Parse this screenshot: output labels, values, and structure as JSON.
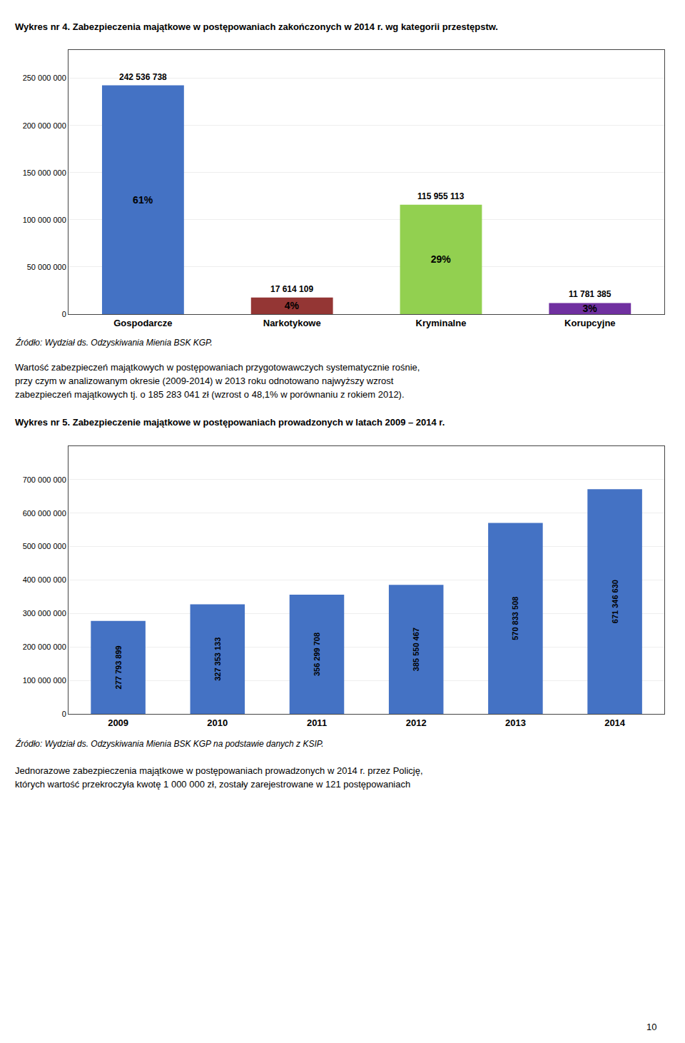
{
  "chart_data": [
    {
      "type": "bar",
      "title": "Wykres nr 4. Zabezpieczenia majątkowe w postępowaniach zakończonych w 2014 r. wg kategorii przestępstw.",
      "categories": [
        "Gospodarcze",
        "Narkotykowe",
        "Kryminalne",
        "Korupcyjne"
      ],
      "values": [
        242536738,
        17614109,
        115955113,
        11781385
      ],
      "value_labels": [
        "242 536 738",
        "17 614 109",
        "115 955 113",
        "11 781 385"
      ],
      "share_labels": [
        "61%",
        "4%",
        "29%",
        "3%"
      ],
      "colors": [
        "#4472C4",
        "#943634",
        "#92D050",
        "#7030A0"
      ],
      "ylim": [
        0,
        280000000
      ],
      "yticks": [
        0,
        {
          "value": 50000000,
          "label": "50 000 000"
        },
        {
          "value": 100000000,
          "label": "100 000 000"
        },
        {
          "value": 150000000,
          "label": "150 000 000"
        },
        {
          "value": 200000000,
          "label": "200 000 000"
        },
        {
          "value": 250000000,
          "label": "250 000 000"
        }
      ],
      "grid": true,
      "data_labels": true,
      "annotations": [
        "Źródło: Wydział ds. Odzyskiwania Mienia BSK KGP.",
        "Wartość zabezpieczeń majątkowych w postępowaniach przygotowawczych systematycznie rośnie,",
        "przy czym w analizowanym okresie (2009-2014) w 2013 roku odnotowano najwyższy wzrost",
        "zabezpieczeń majątkowych tj. o 185 283 041 zł (wzrost o 48,1% w porównaniu z rokiem 2012)."
      ]
    },
    {
      "type": "bar",
      "title": "Wykres nr 5. Zabezpieczenie majątkowe w postępowaniach prowadzonych w latach 2009 – 2014 r.",
      "categories": [
        "2009",
        "2010",
        "2011",
        "2012",
        "2013",
        "2014"
      ],
      "values": [
        277793899,
        327353133,
        356299708,
        385550467,
        570833508,
        671346630
      ],
      "value_labels": [
        "277 793 899",
        "327 353 133",
        "356 299 708",
        "385 550 467",
        "570 833 508",
        "671 346 630"
      ],
      "color": "#4472C4",
      "ylim": [
        0,
        800000000
      ],
      "yticks": [
        0,
        {
          "value": 100000000,
          "label": "100 000 000"
        },
        {
          "value": 200000000,
          "label": "200 000 000"
        },
        {
          "value": 300000000,
          "label": "300 000 000"
        },
        {
          "value": 400000000,
          "label": "400 000 000"
        },
        {
          "value": 500000000,
          "label": "500 000 000"
        },
        {
          "value": 600000000,
          "label": "600 000 000"
        },
        {
          "value": 700000000,
          "label": "700 000 000"
        }
      ],
      "grid": true,
      "data_labels": true,
      "annotations": [
        "Źródło: Wydział ds. Odzyskiwania Mienia BSK KGP na podstawie danych z KSIP.",
        "Jednorazowe zabezpieczenia majątkowe w postępowaniach prowadzonych w 2014 r. przez Policję,",
        "których wartość przekroczyła kwotę 1 000 000 zł, zostały zarejestrowane w 121 postępowaniach"
      ]
    }
  ],
  "annotations": [
    "10"
  ]
}
